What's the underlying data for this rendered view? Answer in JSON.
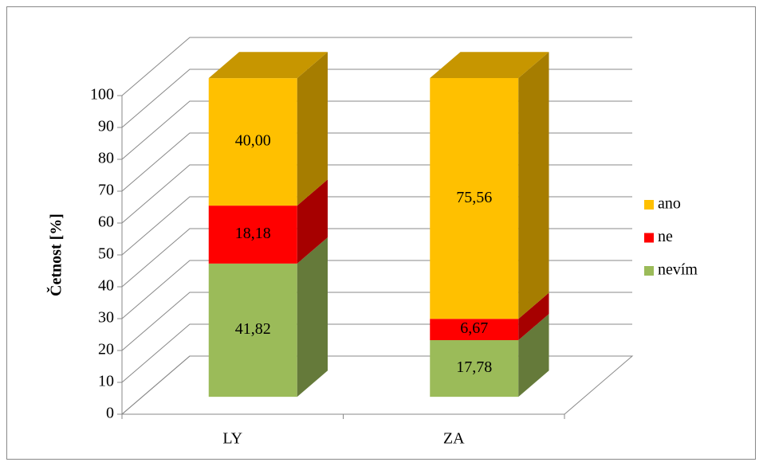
{
  "chart_data": {
    "type": "bar3d_stacked",
    "ylabel": "Četnost [%]",
    "categories": [
      "LY",
      "ZA"
    ],
    "series": [
      {
        "name": "nevím",
        "color": "#9bbb59",
        "values": [
          41.82,
          17.78
        ],
        "value_labels": [
          "41,82",
          "17,78"
        ]
      },
      {
        "name": "ne",
        "color": "#ff0000",
        "values": [
          18.18,
          6.67
        ],
        "value_labels": [
          "18,18",
          "6,67"
        ]
      },
      {
        "name": "ano",
        "color": "#ffc000",
        "values": [
          40.0,
          75.56
        ],
        "value_labels": [
          "40,00",
          "75,56"
        ]
      }
    ],
    "ylim": [
      0,
      100
    ],
    "yticks": [
      0,
      10,
      20,
      30,
      40,
      50,
      60,
      70,
      80,
      90,
      100
    ],
    "grid": true,
    "legend": "right"
  }
}
